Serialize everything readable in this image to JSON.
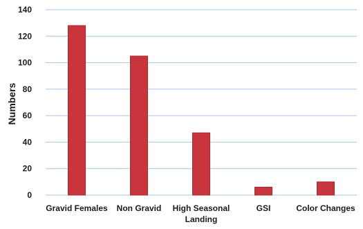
{
  "chart_data": {
    "type": "bar",
    "title": "",
    "xlabel": "",
    "ylabel": "Numbers",
    "categories": [
      [
        "Gravid Females"
      ],
      [
        "Non  Gravid"
      ],
      [
        "High Seasonal",
        "Landing"
      ],
      [
        "GSI"
      ],
      [
        "Color Changes"
      ]
    ],
    "values": [
      128,
      105,
      47,
      6,
      10
    ],
    "ylim": [
      0,
      140
    ],
    "yticks": [
      0,
      20,
      40,
      60,
      80,
      100,
      120,
      140
    ],
    "grid": true,
    "legend": "none",
    "bar_color": "#c8353d",
    "grid_color": "#a9c4e4"
  }
}
